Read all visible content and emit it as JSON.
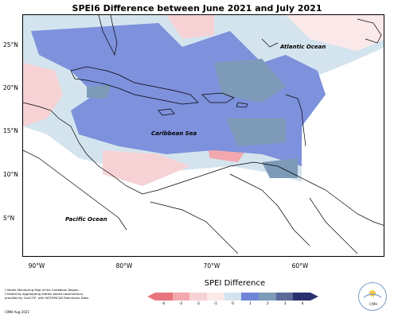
{
  "title": "SPEI6 Difference between June 2021 and July 2021",
  "map": {
    "lat_labels": [
      "25°N",
      "20°N",
      "15°N",
      "10°N",
      "5°N"
    ],
    "lon_labels": [
      "90°W",
      "80°W",
      "70°W",
      "60°W"
    ],
    "labels": {
      "atlantic": "Atlantic Ocean",
      "caribbean": "Caribbean Sea",
      "pacific": "Pacific Ocean"
    }
  },
  "footer": {
    "line1": "Climate Monitoring Map of the Caribbean Region.",
    "line2": "Created by aggregating station based observations,",
    "line3": "provided by CariCOF, with NCEP/NCAR Reanalysis Data.",
    "credit": "CIMH Aug 2021"
  },
  "legend": {
    "title": "SPEI Difference",
    "ticks": [
      "-4",
      "-3",
      "-2",
      "-1",
      "0",
      "1",
      "2",
      "3",
      "4"
    ],
    "colors": [
      "#e8757d",
      "#f2a8ae",
      "#f6d2d5",
      "#fbe9ea",
      "#d4e4ee",
      "#6f84d8",
      "#7d9bb8",
      "#5a6b9a",
      "#2a2f6e"
    ]
  },
  "logo": {
    "text": "CIMH"
  }
}
